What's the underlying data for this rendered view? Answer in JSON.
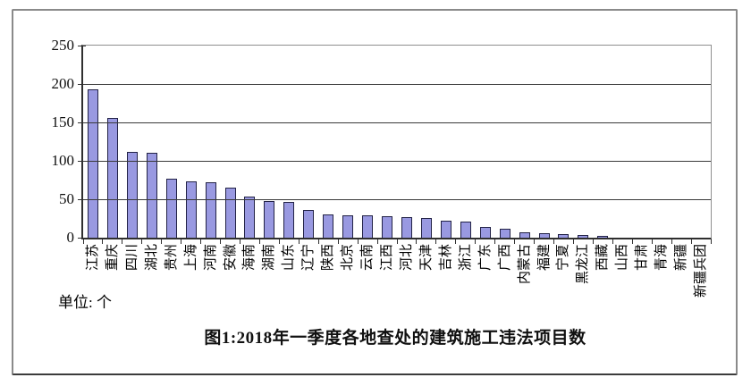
{
  "chart_data": {
    "type": "bar",
    "title": "图1:2018年一季度各地查处的建筑施工违法项目数",
    "unit_label": "单位: 个",
    "categories": [
      "江苏",
      "重庆",
      "四川",
      "湖北",
      "贵州",
      "上海",
      "河南",
      "安徽",
      "海南",
      "湖南",
      "山东",
      "辽宁",
      "陕西",
      "北京",
      "云南",
      "江西",
      "河北",
      "天津",
      "吉林",
      "浙江",
      "广东",
      "广西",
      "内蒙古",
      "福建",
      "宁夏",
      "黑龙江",
      "西藏",
      "山西",
      "甘肃",
      "青海",
      "新疆",
      "新疆兵团"
    ],
    "values": [
      193,
      156,
      112,
      110,
      77,
      73,
      72,
      65,
      54,
      48,
      47,
      36,
      30,
      29,
      29,
      28,
      27,
      26,
      22,
      21,
      14,
      12,
      7,
      6,
      5,
      4,
      2,
      0,
      0,
      0,
      0,
      0
    ],
    "ylabel": "",
    "xlabel": "",
    "ylim": [
      0,
      250
    ],
    "yticks": [
      0,
      50,
      100,
      150,
      200,
      250
    ],
    "grid": "horizontal-over-bars",
    "legend": "none",
    "bar_color": "#9999e1",
    "bar_border_color": "#222246"
  }
}
